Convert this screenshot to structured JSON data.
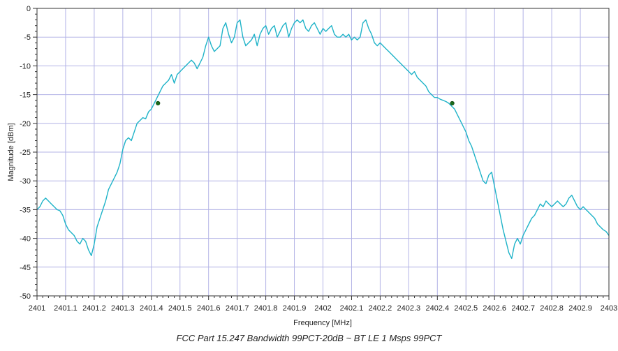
{
  "caption": "FCC Part 15.247 Bandwidth 99PCT-20dB ~ BT LE 1 Msps 99PCT",
  "chart_data": {
    "type": "line",
    "xlabel": "Frequency [MHz]",
    "ylabel": "Magnitude [dBm]",
    "xlim": [
      2401,
      2403
    ],
    "ylim": [
      -50,
      0
    ],
    "x_ticks": [
      2401,
      2401.1,
      2401.2,
      2401.3,
      2401.4,
      2401.5,
      2401.6,
      2401.7,
      2401.8,
      2401.9,
      2402,
      2402.1,
      2402.2,
      2402.3,
      2402.4,
      2402.5,
      2402.6,
      2402.7,
      2402.8,
      2402.9,
      2403
    ],
    "x_tick_labels": [
      "2401",
      "2401.1",
      "2401.2",
      "2401.3",
      "2401.4",
      "2401.5",
      "2401.6",
      "2401.7",
      "2401.8",
      "2401.9",
      "2402",
      "2402.1",
      "2402.2",
      "2402.3",
      "2402.4",
      "2402.5",
      "2402.6",
      "2402.7",
      "2402.8",
      "2402.9",
      "2403"
    ],
    "y_ticks": [
      0,
      -5,
      -10,
      -15,
      -20,
      -25,
      -30,
      -35,
      -40,
      -45,
      -50
    ],
    "y_tick_labels": [
      "0",
      "-5",
      "-10",
      "-15",
      "-20",
      "-25",
      "-30",
      "-35",
      "-40",
      "-45",
      "-50"
    ],
    "grid": true,
    "line_color": "#1fb3c8",
    "grid_color": "#b3b3e6",
    "marker_color": "#1a6b1a",
    "series": [
      {
        "x": [
          2401.0,
          2401.01,
          2401.02,
          2401.03,
          2401.04,
          2401.05,
          2401.06,
          2401.07,
          2401.08,
          2401.09,
          2401.1,
          2401.11,
          2401.12,
          2401.13,
          2401.14,
          2401.15,
          2401.16,
          2401.17,
          2401.18,
          2401.19,
          2401.2,
          2401.21,
          2401.22,
          2401.23,
          2401.24,
          2401.25,
          2401.26,
          2401.27,
          2401.28,
          2401.29,
          2401.3,
          2401.31,
          2401.32,
          2401.33,
          2401.34,
          2401.35,
          2401.36,
          2401.37,
          2401.38,
          2401.39,
          2401.4,
          2401.41,
          2401.42,
          2401.43,
          2401.44,
          2401.45,
          2401.46,
          2401.47,
          2401.48,
          2401.49,
          2401.5,
          2401.51,
          2401.52,
          2401.53,
          2401.54,
          2401.55,
          2401.56,
          2401.57,
          2401.58,
          2401.59,
          2401.6,
          2401.61,
          2401.62,
          2401.63,
          2401.64,
          2401.65,
          2401.66,
          2401.67,
          2401.68,
          2401.69,
          2401.7,
          2401.71,
          2401.72,
          2401.73,
          2401.74,
          2401.75,
          2401.76,
          2401.77,
          2401.78,
          2401.79,
          2401.8,
          2401.81,
          2401.82,
          2401.83,
          2401.84,
          2401.85,
          2401.86,
          2401.87,
          2401.88,
          2401.89,
          2401.9,
          2401.91,
          2401.92,
          2401.93,
          2401.94,
          2401.95,
          2401.96,
          2401.97,
          2401.98,
          2401.99,
          2402.0,
          2402.01,
          2402.02,
          2402.03,
          2402.04,
          2402.05,
          2402.06,
          2402.07,
          2402.08,
          2402.09,
          2402.1,
          2402.11,
          2402.12,
          2402.13,
          2402.14,
          2402.15,
          2402.16,
          2402.17,
          2402.18,
          2402.19,
          2402.2,
          2402.21,
          2402.22,
          2402.23,
          2402.24,
          2402.25,
          2402.26,
          2402.27,
          2402.28,
          2402.29,
          2402.3,
          2402.31,
          2402.32,
          2402.33,
          2402.34,
          2402.35,
          2402.36,
          2402.37,
          2402.38,
          2402.39,
          2402.4,
          2402.41,
          2402.42,
          2402.43,
          2402.44,
          2402.45,
          2402.46,
          2402.47,
          2402.48,
          2402.49,
          2402.5,
          2402.51,
          2402.52,
          2402.53,
          2402.54,
          2402.55,
          2402.56,
          2402.57,
          2402.58,
          2402.59,
          2402.6,
          2402.61,
          2402.62,
          2402.63,
          2402.64,
          2402.65,
          2402.66,
          2402.67,
          2402.68,
          2402.69,
          2402.7,
          2402.71,
          2402.72,
          2402.73,
          2402.74,
          2402.75,
          2402.76,
          2402.77,
          2402.78,
          2402.79,
          2402.8,
          2402.81,
          2402.82,
          2402.83,
          2402.84,
          2402.85,
          2402.86,
          2402.87,
          2402.88,
          2402.89,
          2402.9,
          2402.91,
          2402.92,
          2402.93,
          2402.94,
          2402.95,
          2402.96,
          2402.97,
          2402.98,
          2402.99,
          2403.0
        ],
        "y": [
          -35.0,
          -34.5,
          -33.5,
          -33.0,
          -33.5,
          -34.0,
          -34.5,
          -35.0,
          -35.2,
          -36.0,
          -37.5,
          -38.5,
          -39.0,
          -39.5,
          -40.5,
          -41.0,
          -40.0,
          -40.5,
          -42.0,
          -43.0,
          -41.0,
          -38.0,
          -36.5,
          -35.0,
          -33.5,
          -31.5,
          -30.5,
          -29.5,
          -28.5,
          -27.0,
          -24.5,
          -23.0,
          -22.5,
          -23.0,
          -21.5,
          -20.0,
          -19.5,
          -19.0,
          -19.2,
          -18.0,
          -17.5,
          -16.5,
          -15.5,
          -14.5,
          -13.5,
          -13.0,
          -12.5,
          -11.5,
          -13.0,
          -11.5,
          -11.0,
          -10.5,
          -10.0,
          -9.5,
          -9.0,
          -9.5,
          -10.5,
          -9.5,
          -8.5,
          -6.5,
          -5.0,
          -6.5,
          -7.5,
          -7.0,
          -6.5,
          -3.5,
          -2.5,
          -4.5,
          -6.0,
          -5.0,
          -2.5,
          -2.0,
          -5.0,
          -6.5,
          -6.0,
          -5.5,
          -4.5,
          -6.5,
          -4.5,
          -3.5,
          -3.0,
          -4.5,
          -3.5,
          -3.0,
          -5.0,
          -4.0,
          -3.0,
          -2.5,
          -5.0,
          -3.5,
          -2.5,
          -2.0,
          -2.5,
          -2.0,
          -3.5,
          -4.0,
          -3.0,
          -2.5,
          -3.5,
          -4.5,
          -3.5,
          -4.0,
          -3.5,
          -3.0,
          -4.5,
          -5.0,
          -5.0,
          -4.5,
          -5.0,
          -4.5,
          -5.5,
          -5.0,
          -5.5,
          -5.0,
          -2.5,
          -2.0,
          -3.5,
          -4.5,
          -6.0,
          -6.5,
          -6.0,
          -6.5,
          -7.0,
          -7.5,
          -8.0,
          -8.5,
          -9.0,
          -9.5,
          -10.0,
          -10.5,
          -11.0,
          -11.5,
          -11.0,
          -12.0,
          -12.5,
          -13.0,
          -13.5,
          -14.5,
          -15.0,
          -15.5,
          -15.5,
          -15.8,
          -16.0,
          -16.2,
          -16.5,
          -17.0,
          -17.5,
          -18.5,
          -19.5,
          -20.5,
          -21.5,
          -23.0,
          -24.0,
          -25.5,
          -27.0,
          -28.5,
          -30.0,
          -30.5,
          -29.0,
          -28.5,
          -31.0,
          -33.5,
          -36.0,
          -38.5,
          -40.5,
          -42.5,
          -43.5,
          -41.0,
          -40.0,
          -41.0,
          -39.5,
          -38.5,
          -37.5,
          -36.5,
          -36.0,
          -35.0,
          -34.0,
          -34.5,
          -33.5,
          -34.0,
          -34.5,
          -34.0,
          -33.5,
          -34.0,
          -34.5,
          -34.0,
          -33.0,
          -32.5,
          -33.5,
          -34.5,
          -35.0,
          -34.5,
          -35.0,
          -35.5,
          -36.0,
          -36.5,
          -37.5,
          -38.0,
          -38.5,
          -38.8,
          -39.5
        ]
      }
    ],
    "markers": [
      {
        "x": 2401.423,
        "y": -16.5
      },
      {
        "x": 2402.452,
        "y": -16.5
      }
    ]
  }
}
